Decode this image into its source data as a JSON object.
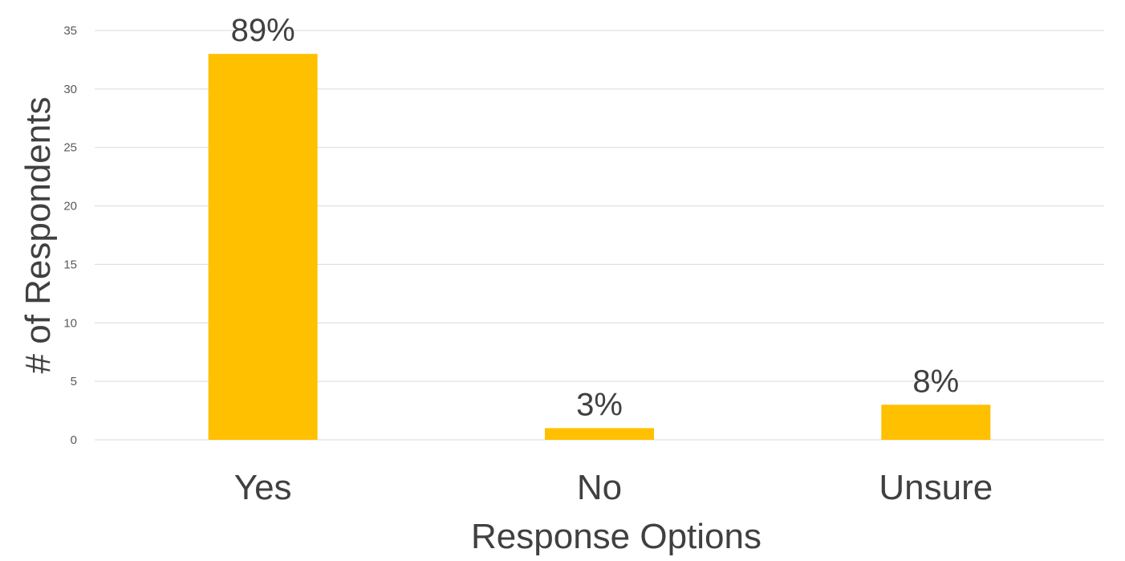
{
  "chart_data": {
    "type": "bar",
    "title": "",
    "xlabel": "Response Options",
    "ylabel": "# of Respondents",
    "categories": [
      "Yes",
      "No",
      "Unsure"
    ],
    "values": [
      33,
      1,
      3
    ],
    "data_labels": [
      "89%",
      "3%",
      "8%"
    ],
    "ylim": [
      0,
      35
    ],
    "yticks": [
      0,
      5,
      10,
      15,
      20,
      25,
      30,
      35
    ],
    "grid": true,
    "legend": "none",
    "bar_color": "#FFC000",
    "gridline_color": "#D9D9D9"
  }
}
